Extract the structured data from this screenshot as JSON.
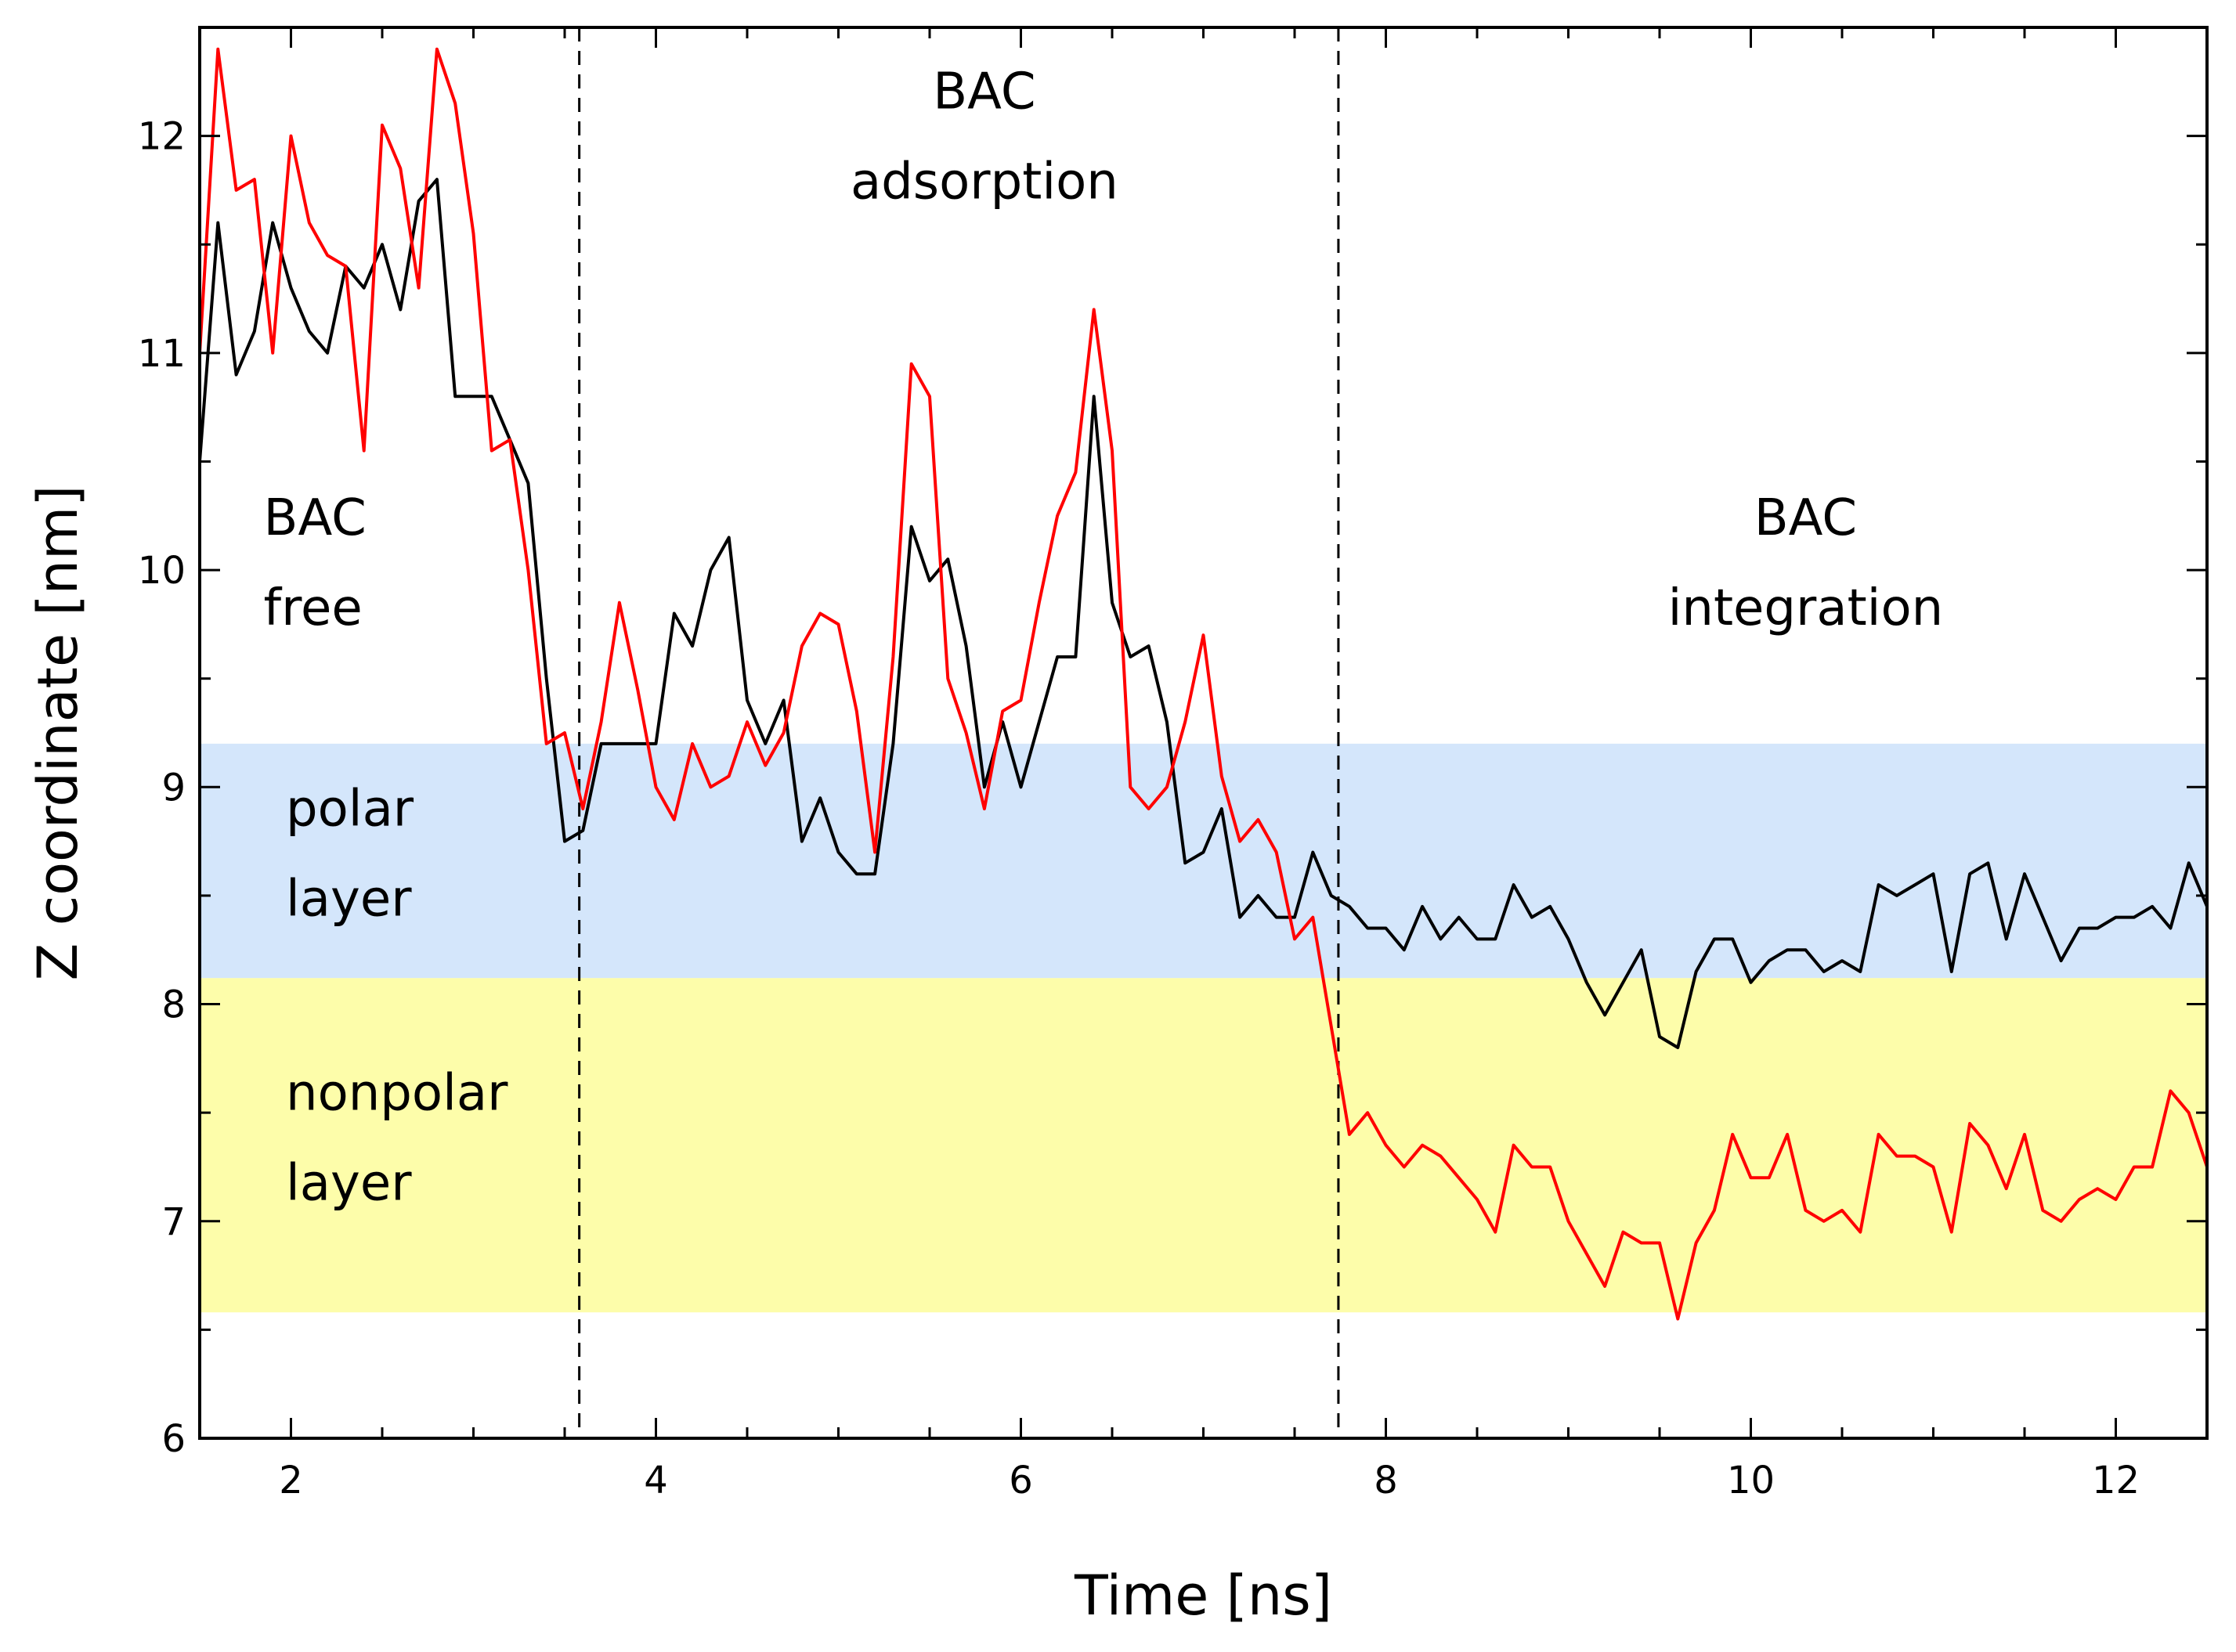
{
  "chart_data": {
    "type": "line",
    "xlabel": "Time [ns]",
    "ylabel": "Z coordinate [nm]",
    "xlim": [
      1.5,
      12.5
    ],
    "ylim": [
      6,
      12.5
    ],
    "x_ticks": [
      2,
      4,
      6,
      8,
      10,
      12
    ],
    "y_ticks": [
      6,
      7,
      8,
      9,
      10,
      11,
      12
    ],
    "x_minor_step": 0.5,
    "y_minor_step": 0.5,
    "grid": false,
    "legend": "none",
    "bands": [
      {
        "label": [
          "polar",
          "layer"
        ],
        "y_range": [
          8.12,
          9.2
        ],
        "color": "#d4e6fb"
      },
      {
        "label": [
          "nonpolar",
          "layer"
        ],
        "y_range": [
          6.58,
          8.12
        ],
        "color": "#fdfdaa"
      }
    ],
    "vlines": [
      {
        "x": 3.58,
        "style": "dashed"
      },
      {
        "x": 7.74,
        "style": "dashed"
      }
    ],
    "annotations": [
      {
        "lines": [
          "BAC",
          "free"
        ],
        "x": 1.85,
        "y": 10.0
      },
      {
        "lines": [
          "BAC",
          "adsorption"
        ],
        "x": 5.8,
        "y": 12.0
      },
      {
        "lines": [
          "BAC",
          "integration"
        ],
        "x": 10.3,
        "y": 10.0
      }
    ],
    "series": [
      {
        "color": "#000000",
        "x": [
          1.5,
          1.6,
          1.7,
          1.8,
          1.9,
          2.0,
          2.1,
          2.2,
          2.3,
          2.4,
          2.5,
          2.6,
          2.7,
          2.8,
          2.9,
          3.0,
          3.1,
          3.2,
          3.3,
          3.4,
          3.5,
          3.6,
          3.7,
          3.8,
          3.9,
          4.0,
          4.1,
          4.2,
          4.3,
          4.4,
          4.5,
          4.6,
          4.7,
          4.8,
          4.9,
          5.0,
          5.1,
          5.2,
          5.3,
          5.4,
          5.5,
          5.6,
          5.7,
          5.8,
          5.9,
          6.0,
          6.1,
          6.2,
          6.3,
          6.4,
          6.5,
          6.6,
          6.7,
          6.8,
          6.9,
          7.0,
          7.1,
          7.2,
          7.3,
          7.4,
          7.5,
          7.6,
          7.7,
          7.8,
          7.9,
          8.0,
          8.1,
          8.2,
          8.3,
          8.4,
          8.5,
          8.6,
          8.7,
          8.8,
          8.9,
          9.0,
          9.1,
          9.2,
          9.3,
          9.4,
          9.5,
          9.6,
          9.7,
          9.8,
          9.9,
          10.0,
          10.1,
          10.2,
          10.3,
          10.4,
          10.5,
          10.6,
          10.7,
          10.8,
          10.9,
          11.0,
          11.1,
          11.2,
          11.3,
          11.4,
          11.5,
          11.6,
          11.7,
          11.8,
          11.9,
          12.0,
          12.1,
          12.2,
          12.3,
          12.4,
          12.5
        ],
        "y": [
          10.5,
          11.6,
          10.9,
          11.1,
          11.6,
          11.3,
          11.1,
          11.0,
          11.4,
          11.3,
          11.5,
          11.2,
          11.7,
          11.8,
          10.8,
          10.8,
          10.8,
          10.6,
          10.4,
          9.5,
          8.75,
          8.8,
          9.2,
          9.2,
          9.2,
          9.2,
          9.8,
          9.65,
          10.0,
          10.15,
          9.4,
          9.2,
          9.4,
          8.75,
          8.95,
          8.7,
          8.6,
          8.6,
          9.2,
          10.2,
          9.95,
          10.05,
          9.65,
          9.0,
          9.3,
          9.0,
          9.3,
          9.6,
          9.6,
          10.8,
          9.85,
          9.6,
          9.65,
          9.3,
          8.65,
          8.7,
          8.9,
          8.4,
          8.5,
          8.4,
          8.4,
          8.7,
          8.5,
          8.45,
          8.35,
          8.35,
          8.25,
          8.45,
          8.3,
          8.4,
          8.3,
          8.3,
          8.55,
          8.4,
          8.45,
          8.3,
          8.1,
          7.95,
          8.1,
          8.25,
          7.85,
          7.8,
          8.15,
          8.3,
          8.3,
          8.1,
          8.2,
          8.25,
          8.25,
          8.15,
          8.2,
          8.15,
          8.55,
          8.5,
          8.55,
          8.6,
          8.15,
          8.6,
          8.65,
          8.3,
          8.6,
          8.4,
          8.2,
          8.35,
          8.35,
          8.4,
          8.4,
          8.45,
          8.35,
          8.65,
          8.45
        ]
      },
      {
        "color": "#ff0000",
        "x": [
          1.5,
          1.6,
          1.7,
          1.8,
          1.9,
          2.0,
          2.1,
          2.2,
          2.3,
          2.4,
          2.5,
          2.6,
          2.7,
          2.8,
          2.9,
          3.0,
          3.1,
          3.2,
          3.3,
          3.4,
          3.5,
          3.6,
          3.7,
          3.8,
          3.9,
          4.0,
          4.1,
          4.2,
          4.3,
          4.4,
          4.5,
          4.6,
          4.7,
          4.8,
          4.9,
          5.0,
          5.1,
          5.2,
          5.3,
          5.4,
          5.5,
          5.6,
          5.7,
          5.8,
          5.9,
          6.0,
          6.1,
          6.2,
          6.3,
          6.4,
          6.5,
          6.6,
          6.7,
          6.8,
          6.9,
          7.0,
          7.1,
          7.2,
          7.3,
          7.4,
          7.5,
          7.6,
          7.7,
          7.8,
          7.9,
          8.0,
          8.1,
          8.2,
          8.3,
          8.4,
          8.5,
          8.6,
          8.7,
          8.8,
          8.9,
          9.0,
          9.1,
          9.2,
          9.3,
          9.4,
          9.5,
          9.6,
          9.7,
          9.8,
          9.9,
          10.0,
          10.1,
          10.2,
          10.3,
          10.4,
          10.5,
          10.6,
          10.7,
          10.8,
          10.9,
          11.0,
          11.1,
          11.2,
          11.3,
          11.4,
          11.5,
          11.6,
          11.7,
          11.8,
          11.9,
          12.0,
          12.1,
          12.2,
          12.3,
          12.4,
          12.5
        ],
        "y": [
          11.0,
          12.4,
          11.75,
          11.8,
          11.0,
          12.0,
          11.6,
          11.45,
          11.4,
          10.55,
          12.05,
          11.85,
          11.3,
          12.4,
          12.15,
          11.55,
          10.55,
          10.6,
          10.0,
          9.2,
          9.25,
          8.9,
          9.3,
          9.85,
          9.45,
          9.0,
          8.85,
          9.2,
          9.0,
          9.05,
          9.3,
          9.1,
          9.25,
          9.65,
          9.8,
          9.75,
          9.35,
          8.7,
          9.6,
          10.95,
          10.8,
          9.5,
          9.25,
          8.9,
          9.35,
          9.4,
          9.85,
          10.25,
          10.45,
          11.2,
          10.55,
          9.0,
          8.9,
          9.0,
          9.3,
          9.7,
          9.05,
          8.75,
          8.85,
          8.7,
          8.3,
          8.4,
          7.9,
          7.4,
          7.5,
          7.35,
          7.25,
          7.35,
          7.3,
          7.2,
          7.1,
          6.95,
          7.35,
          7.25,
          7.25,
          7.0,
          6.85,
          6.7,
          6.95,
          6.9,
          6.9,
          6.55,
          6.9,
          7.05,
          7.4,
          7.2,
          7.2,
          7.4,
          7.05,
          7.0,
          7.05,
          6.95,
          7.4,
          7.3,
          7.3,
          7.25,
          6.95,
          7.45,
          7.35,
          7.15,
          7.4,
          7.05,
          7.0,
          7.1,
          7.15,
          7.1,
          7.25,
          7.25,
          7.6,
          7.5,
          7.25
        ]
      }
    ]
  }
}
